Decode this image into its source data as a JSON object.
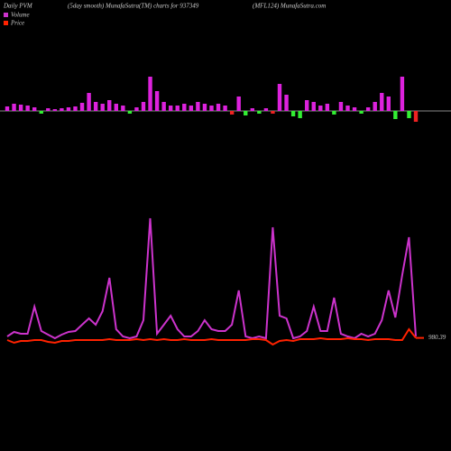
{
  "chart_data": [
    {
      "type": "bar",
      "title": "Daily PVM",
      "subtitle": "(5day smooth) MunafaSutra(TM) charts for 937349",
      "annotations": [
        "(MFL124) MunafaSutra.com"
      ],
      "categories": [
        null,
        null,
        null,
        null,
        null,
        null,
        null,
        null,
        null,
        null,
        null,
        null,
        null,
        null,
        null,
        null,
        null,
        null,
        null,
        null,
        null,
        null,
        null,
        null,
        null,
        null,
        null,
        null,
        null,
        null,
        null,
        null,
        null,
        null,
        null,
        null,
        null,
        null,
        null,
        null,
        null,
        null,
        null,
        null,
        null,
        null,
        null,
        null,
        null,
        null,
        null,
        null,
        null,
        null,
        null,
        null,
        null,
        null,
        null,
        null,
        null
      ],
      "values": [
        5,
        8,
        7,
        6,
        4,
        -3,
        3,
        2,
        3,
        4,
        5,
        9,
        20,
        10,
        8,
        12,
        8,
        6,
        -3,
        4,
        10,
        38,
        22,
        10,
        6,
        6,
        8,
        6,
        10,
        8,
        6,
        8,
        6,
        -4,
        16,
        -5,
        3,
        -3,
        3,
        -3,
        30,
        18,
        -6,
        -8,
        12,
        10,
        6,
        8,
        -4,
        10,
        6,
        4,
        -3,
        4,
        10,
        20,
        16,
        -9,
        38,
        -8,
        -12
      ],
      "colors": [
        "#dd22dd",
        "#dd22dd",
        "#dd22dd",
        "#dd22dd",
        "#dd22dd",
        "#33ee33",
        "#dd22dd",
        "#dd22dd",
        "#dd22dd",
        "#dd22dd",
        "#dd22dd",
        "#dd22dd",
        "#dd22dd",
        "#dd22dd",
        "#dd22dd",
        "#dd22dd",
        "#dd22dd",
        "#dd22dd",
        "#33ee33",
        "#dd22dd",
        "#dd22dd",
        "#dd22dd",
        "#dd22dd",
        "#dd22dd",
        "#dd22dd",
        "#dd22dd",
        "#dd22dd",
        "#dd22dd",
        "#dd22dd",
        "#dd22dd",
        "#dd22dd",
        "#dd22dd",
        "#dd22dd",
        "#ee2222",
        "#dd22dd",
        "#33ee33",
        "#dd22dd",
        "#33ee33",
        "#dd22dd",
        "#ee2222",
        "#dd22dd",
        "#dd22dd",
        "#33ee33",
        "#33ee33",
        "#dd22dd",
        "#dd22dd",
        "#dd22dd",
        "#dd22dd",
        "#33ee33",
        "#dd22dd",
        "#dd22dd",
        "#dd22dd",
        "#33ee33",
        "#dd22dd",
        "#dd22dd",
        "#dd22dd",
        "#dd22dd",
        "#33ee33",
        "#dd22dd",
        "#33ee33",
        "#ee2222"
      ],
      "ylim": [
        -40,
        40
      ]
    },
    {
      "type": "line",
      "categories": [
        null,
        null,
        null,
        null,
        null,
        null,
        null,
        null,
        null,
        null,
        null,
        null,
        null,
        null,
        null,
        null,
        null,
        null,
        null,
        null,
        null,
        null,
        null,
        null,
        null,
        null,
        null,
        null,
        null,
        null,
        null,
        null,
        null,
        null,
        null,
        null,
        null,
        null,
        null,
        null,
        null,
        null,
        null,
        null,
        null,
        null,
        null,
        null,
        null,
        null,
        null,
        null,
        null,
        null,
        null,
        null,
        null,
        null,
        null,
        null,
        null
      ],
      "series": [
        {
          "name": "Volume",
          "color": "#cc33cc",
          "values": [
            12,
            17,
            15,
            15,
            45,
            18,
            14,
            10,
            14,
            17,
            18,
            25,
            32,
            25,
            40,
            77,
            20,
            12,
            10,
            12,
            30,
            143,
            15,
            25,
            35,
            20,
            12,
            12,
            18,
            30,
            20,
            18,
            18,
            25,
            63,
            12,
            10,
            12,
            10,
            133,
            35,
            32,
            10,
            12,
            18,
            45,
            18,
            18,
            55,
            15,
            12,
            10,
            15,
            12,
            15,
            30,
            63,
            33,
            80,
            122,
            12
          ]
        },
        {
          "name": "Price",
          "color": "#ff2200",
          "axis": "y2",
          "values": [
            978,
            975,
            977,
            977,
            978,
            978,
            976,
            975,
            977,
            977,
            978,
            978,
            978,
            978,
            978,
            979,
            978,
            978,
            978,
            979,
            978,
            979,
            978,
            979,
            978,
            978,
            979,
            978,
            978,
            978,
            979,
            978,
            978,
            978,
            978,
            978,
            979,
            979,
            978,
            973,
            977,
            978,
            977,
            979,
            979,
            979,
            980,
            979,
            979,
            979,
            980,
            979,
            979,
            978,
            979,
            979,
            979,
            978,
            978,
            990,
            980.39
          ]
        }
      ],
      "ylim": [
        0,
        150
      ],
      "y2lim": [
        970,
        1120
      ]
    }
  ]
}
